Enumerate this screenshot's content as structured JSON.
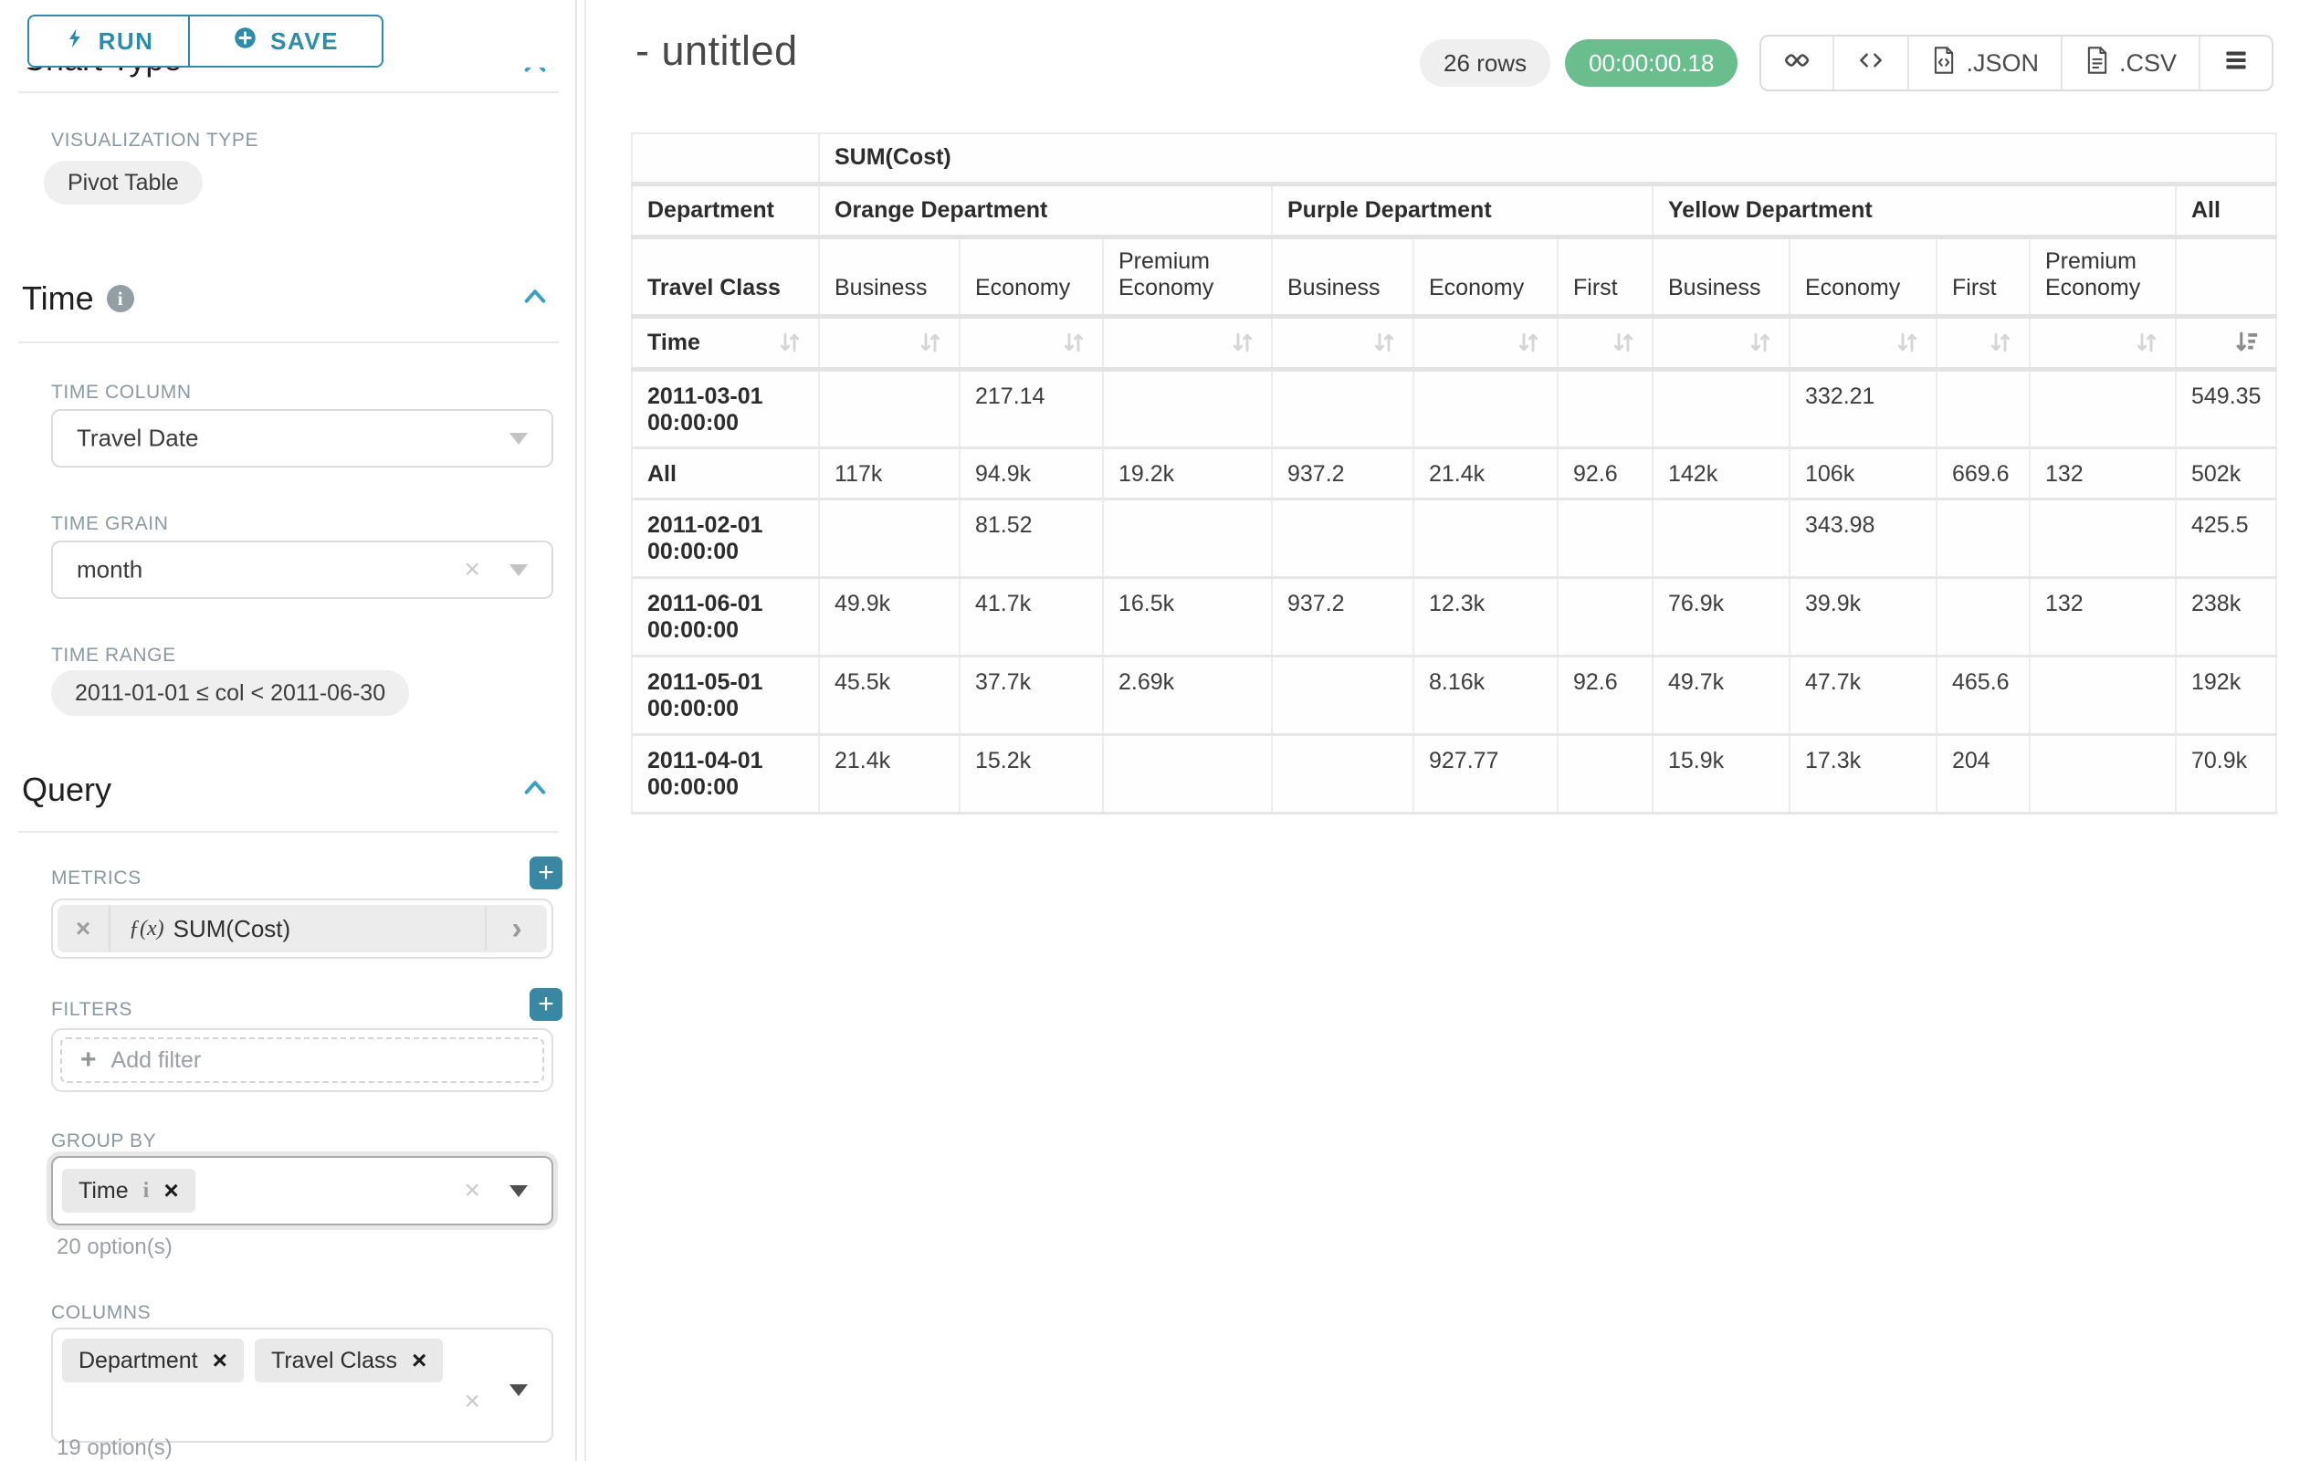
{
  "sidebar": {
    "run_button": "RUN",
    "save_button": "SAVE",
    "chart_type": {
      "title": "Chart Type"
    },
    "visualization": {
      "label": "VISUALIZATION TYPE",
      "value": "Pivot Table"
    },
    "time": {
      "title": "Time",
      "time_column": {
        "label": "TIME COLUMN",
        "value": "Travel Date"
      },
      "time_grain": {
        "label": "TIME GRAIN",
        "value": "month"
      },
      "time_range": {
        "label": "TIME RANGE",
        "value": "2011-01-01 ≤ col < 2011-06-30"
      }
    },
    "query": {
      "title": "Query",
      "metrics": {
        "label": "METRICS",
        "fx": "ƒ(x)",
        "value": "SUM(Cost)"
      },
      "filters": {
        "label": "FILTERS",
        "placeholder": "Add filter"
      },
      "group_by": {
        "label": "GROUP BY",
        "chips": [
          "Time"
        ],
        "hint": "20 option(s)"
      },
      "columns": {
        "label": "COLUMNS",
        "chips": [
          "Department",
          "Travel Class"
        ],
        "hint": "19 option(s)"
      }
    }
  },
  "main": {
    "title": "- untitled",
    "rows_badge": "26 rows",
    "timer_badge": "00:00:00.18",
    "export_json": ".JSON",
    "export_csv": ".CSV"
  },
  "chart_data": {
    "type": "table",
    "metric_header": "SUM(Cost)",
    "row_axis_labels": {
      "department": "Department",
      "travel_class": "Travel Class",
      "time": "Time"
    },
    "column_groups": [
      {
        "label": "Orange Department",
        "columns": [
          "Business",
          "Economy",
          "Premium Economy"
        ]
      },
      {
        "label": "Purple Department",
        "columns": [
          "Business",
          "Economy",
          "First"
        ]
      },
      {
        "label": "Yellow Department",
        "columns": [
          "Business",
          "Economy",
          "First",
          "Premium Economy"
        ]
      },
      {
        "label": "All",
        "columns": [
          ""
        ]
      }
    ],
    "rows": [
      {
        "label": "2011-03-01 00:00:00",
        "values": [
          "",
          "217.14",
          "",
          "",
          "",
          "",
          "",
          "332.21",
          "",
          "",
          "549.35"
        ]
      },
      {
        "label": "All",
        "values": [
          "117k",
          "94.9k",
          "19.2k",
          "937.2",
          "21.4k",
          "92.6",
          "142k",
          "106k",
          "669.6",
          "132",
          "502k"
        ]
      },
      {
        "label": "2011-02-01 00:00:00",
        "values": [
          "",
          "81.52",
          "",
          "",
          "",
          "",
          "",
          "343.98",
          "",
          "",
          "425.5"
        ]
      },
      {
        "label": "2011-06-01 00:00:00",
        "values": [
          "49.9k",
          "41.7k",
          "16.5k",
          "937.2",
          "12.3k",
          "",
          "76.9k",
          "39.9k",
          "",
          "132",
          "238k"
        ]
      },
      {
        "label": "2011-05-01 00:00:00",
        "values": [
          "45.5k",
          "37.7k",
          "2.69k",
          "",
          "8.16k",
          "92.6",
          "49.7k",
          "47.7k",
          "465.6",
          "",
          "192k"
        ]
      },
      {
        "label": "2011-04-01 00:00:00",
        "values": [
          "21.4k",
          "15.2k",
          "",
          "",
          "927.77",
          "",
          "15.9k",
          "17.3k",
          "204",
          "",
          "70.9k"
        ]
      }
    ],
    "sort": {
      "active_column": "All",
      "direction": "desc"
    },
    "colors": {
      "accent": "#2e8ca8",
      "plus_button": "#3a87a4",
      "success": "#6abe8e",
      "chevron": "#3ea0c0"
    }
  }
}
